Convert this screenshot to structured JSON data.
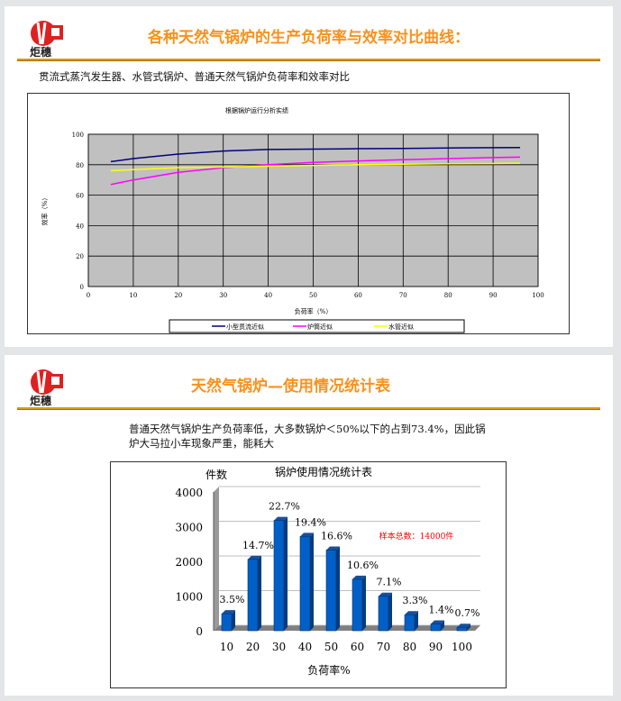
{
  "slide1": {
    "logo_text": "炬穗",
    "title": "各种天然气锅炉的生产负荷率与效率对比曲线：",
    "subtitle": "贯流式蒸汽发生器、水管式锅炉、普通天然气锅炉负荷率和效率对比"
  },
  "slide2": {
    "logo_text": "炬穗",
    "title": "天然气锅炉—使用情况统计表",
    "description_line1": "普通天然气锅炉生产负荷率低，大多数锅炉＜50%以下的占到73.4%，因此锅",
    "description_line2": "炉大马拉小车现象严重，能耗大"
  },
  "chart_data": [
    {
      "type": "line",
      "title": "根据锅炉运行分析实绩",
      "xlabel": "负荷率（%）",
      "ylabel": "效率（%）",
      "xlim": [
        0,
        100
      ],
      "ylim": [
        0,
        100
      ],
      "xticks": [
        "0",
        "10",
        "20",
        "30",
        "40",
        "50",
        "60",
        "70",
        "80",
        "90",
        "100"
      ],
      "yticks": [
        "0",
        "20",
        "40",
        "60",
        "80",
        "100"
      ],
      "grid": true,
      "legend": "bottom",
      "background": "#c0c0c0",
      "series": [
        {
          "name": "小型贯流近似",
          "color": "#000080",
          "x": [
            5,
            10,
            20,
            30,
            40,
            50,
            60,
            70,
            80,
            90,
            96
          ],
          "y": [
            82,
            84,
            87,
            89,
            90,
            90.2,
            90.5,
            90.7,
            91,
            91.2,
            91.3
          ]
        },
        {
          "name": "炉筒近似",
          "color": "#ff00ff",
          "x": [
            5,
            10,
            20,
            30,
            40,
            50,
            60,
            70,
            80,
            90,
            96
          ],
          "y": [
            67,
            70,
            75,
            78,
            80,
            81.5,
            82.5,
            83.3,
            84,
            84.7,
            85
          ]
        },
        {
          "name": "水管近似",
          "color": "#ffff00",
          "x": [
            5,
            10,
            20,
            30,
            40,
            50,
            60,
            70,
            80,
            90,
            96
          ],
          "y": [
            76,
            76.8,
            78,
            78.5,
            79,
            79.5,
            80,
            80.3,
            80.6,
            80.8,
            81
          ]
        }
      ]
    },
    {
      "type": "bar",
      "title": "锅炉使用情况统计表",
      "ylabel": "件数",
      "xlabel": "负荷率%",
      "ylim": [
        0,
        4000
      ],
      "yticks": [
        "0",
        "1000",
        "2000",
        "3000",
        "4000"
      ],
      "grid": true,
      "color": "#0060c8",
      "categories": [
        "10",
        "20",
        "30",
        "40",
        "50",
        "60",
        "70",
        "80",
        "90",
        "100"
      ],
      "values": [
        490,
        2058,
        3178,
        2716,
        2324,
        1484,
        994,
        462,
        196,
        98
      ],
      "labels": [
        "3.5%",
        "14.7%",
        "22.7%",
        "19.4%",
        "16.6%",
        "10.6%",
        "7.1%",
        "3.3%",
        "1.4%",
        "0.7%"
      ],
      "annotation": "样本总数：14000件",
      "annotation_color": "#ff0000"
    }
  ]
}
